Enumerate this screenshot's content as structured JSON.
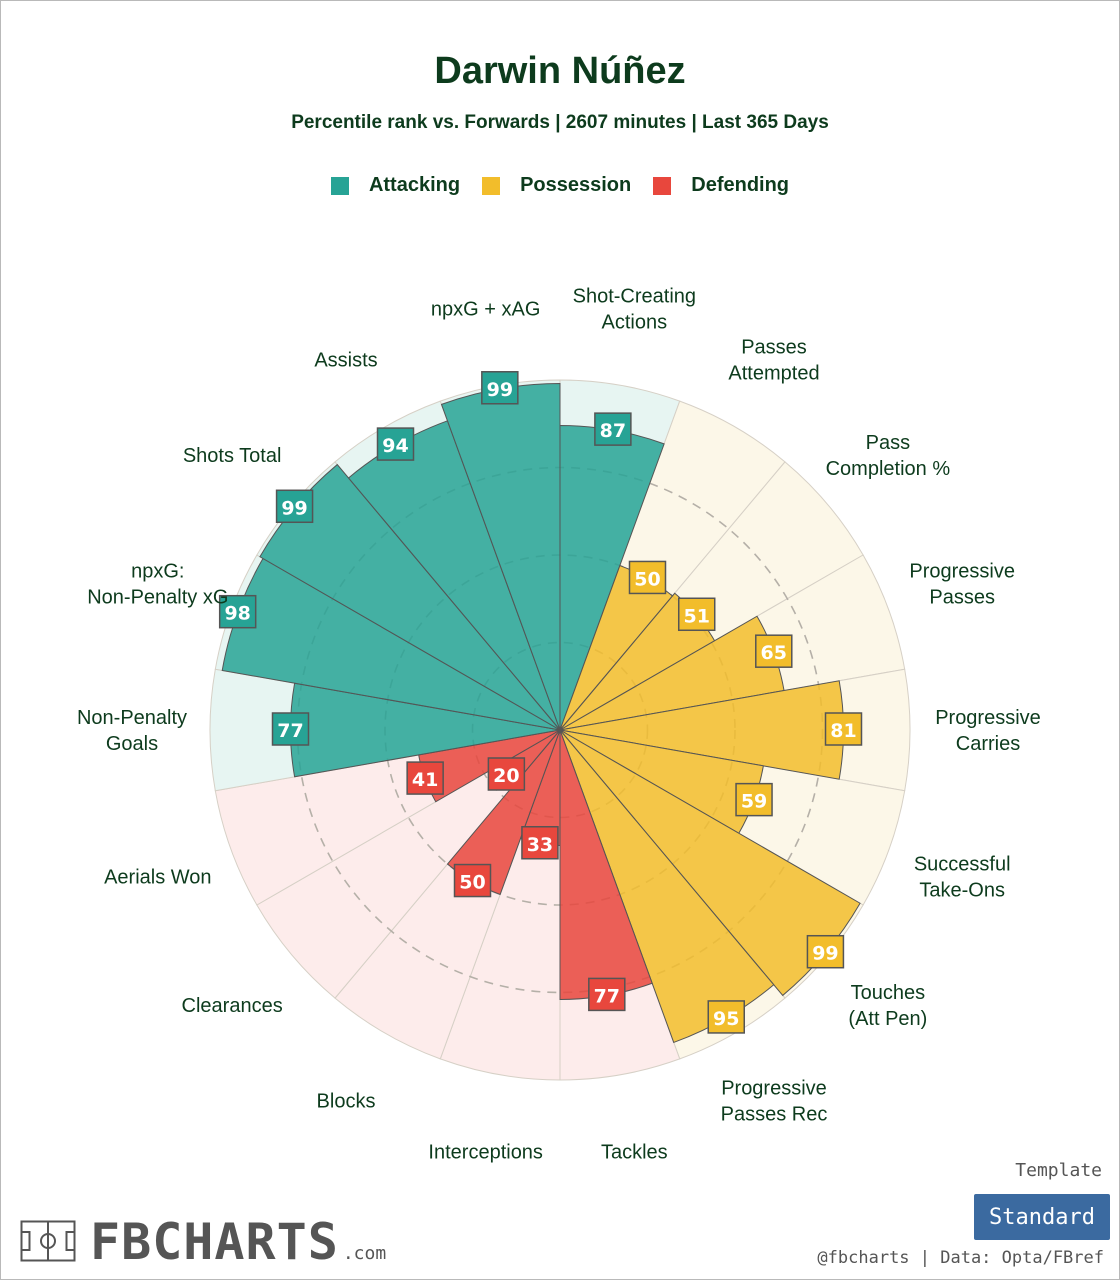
{
  "title": "Darwin Núñez",
  "subtitle": "Percentile rank vs. Forwards | 2607 minutes | Last 365 Days",
  "legend": [
    {
      "label": "Attacking",
      "color": "#27a395"
    },
    {
      "label": "Possession",
      "color": "#f2bd2b"
    },
    {
      "label": "Defending",
      "color": "#e8473d"
    }
  ],
  "template": {
    "caption": "Template",
    "button_label": "Standard"
  },
  "credit": "@fbcharts | Data: Opta/FBref",
  "brand": {
    "name": "FBCHARTS",
    "suffix": ".com",
    "icon": "pitch-icon"
  },
  "chart_data": {
    "type": "radial-bar",
    "range": [
      0,
      100
    ],
    "categories": [
      {
        "name": "Attacking",
        "color": "#27a395",
        "background": "#e7f5f2"
      },
      {
        "name": "Possession",
        "color": "#f2bd2b",
        "background": "#fcf7e8"
      },
      {
        "name": "Defending",
        "color": "#e8473d",
        "background": "#fdeceb"
      }
    ],
    "metrics": [
      {
        "label": "Shot-Creating Actions",
        "value": 87,
        "category": "Attacking"
      },
      {
        "label": "Passes Attempted",
        "value": 50,
        "category": "Possession"
      },
      {
        "label": "Pass Completion %",
        "value": 51,
        "category": "Possession"
      },
      {
        "label": "Progressive Passes",
        "value": 65,
        "category": "Possession"
      },
      {
        "label": "Progressive Carries",
        "value": 81,
        "category": "Possession"
      },
      {
        "label": "Successful Take-Ons",
        "value": 59,
        "category": "Possession"
      },
      {
        "label": "Touches (Att Pen)",
        "value": 99,
        "category": "Possession"
      },
      {
        "label": "Progressive Passes Rec",
        "value": 95,
        "category": "Possession"
      },
      {
        "label": "Tackles",
        "value": 77,
        "category": "Defending"
      },
      {
        "label": "Interceptions",
        "value": 33,
        "category": "Defending"
      },
      {
        "label": "Blocks",
        "value": 50,
        "category": "Defending"
      },
      {
        "label": "Clearances",
        "value": 20,
        "category": "Defending"
      },
      {
        "label": "Aerials Won",
        "value": 41,
        "category": "Defending"
      },
      {
        "label": "Non-Penalty Goals",
        "value": 77,
        "category": "Attacking"
      },
      {
        "label": "npxG: Non-Penalty xG",
        "value": 98,
        "category": "Attacking"
      },
      {
        "label": "Shots Total",
        "value": 99,
        "category": "Attacking"
      },
      {
        "label": "Assists",
        "value": 94,
        "category": "Attacking"
      },
      {
        "label": "npxG + xAG",
        "value": 99,
        "category": "Attacking"
      }
    ]
  }
}
